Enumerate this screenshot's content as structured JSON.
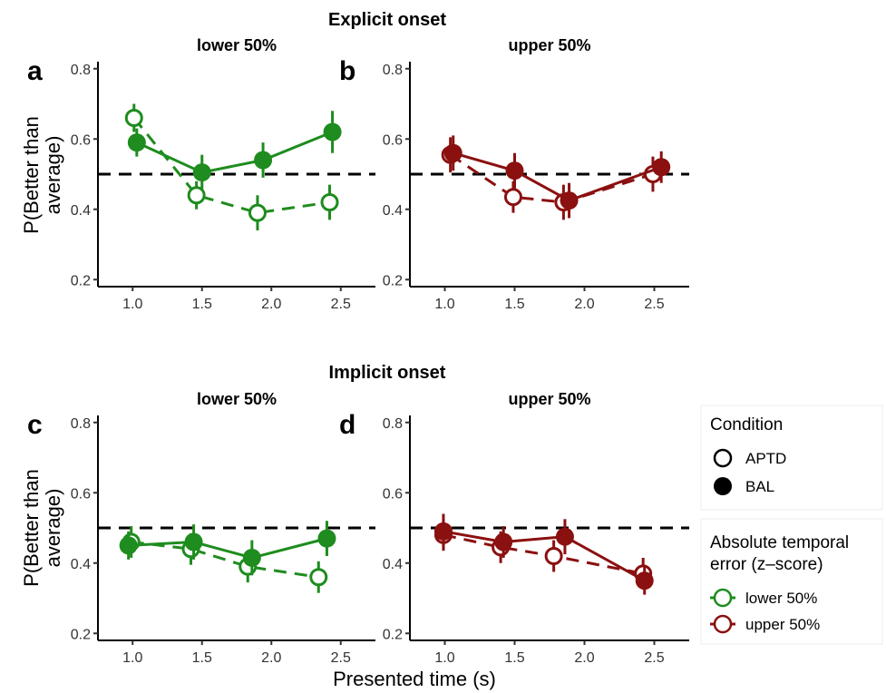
{
  "section_titles": [
    "Explicit onset",
    "Implicit onset"
  ],
  "y_axis_label": [
    "P(Better than",
    "average)"
  ],
  "x_axis_label": "Presented time (s)",
  "colors": {
    "lower": "#1e8c1e",
    "upper": "#8b1010",
    "reference": "#000000"
  },
  "legend": {
    "condition": {
      "title": "Condition",
      "items": [
        "APTD",
        "BAL"
      ]
    },
    "error": {
      "title": [
        "Absolute temporal",
        "error (z–score)"
      ],
      "items": [
        "lower 50%",
        "upper 50%"
      ]
    }
  },
  "chart_data": [
    {
      "panel": "a",
      "section": "Explicit onset",
      "facet": "lower 50%",
      "type": "line",
      "x_ticks": [
        "1.0",
        "1.5",
        "2.0",
        "2.5"
      ],
      "y_ticks": [
        "0.2",
        "0.4",
        "0.6",
        "0.8"
      ],
      "xlim": [
        0.75,
        2.75
      ],
      "ylim": [
        0.18,
        0.82
      ],
      "reference_line": 0.5,
      "color": "lower",
      "series": [
        {
          "name": "APTD",
          "x": [
            1.01,
            1.46,
            1.9,
            2.42
          ],
          "y": [
            0.66,
            0.44,
            0.39,
            0.42
          ],
          "err": [
            0.04,
            0.04,
            0.05,
            0.05
          ]
        },
        {
          "name": "BAL",
          "x": [
            1.03,
            1.5,
            1.94,
            2.44
          ],
          "y": [
            0.59,
            0.505,
            0.54,
            0.62
          ],
          "err": [
            0.04,
            0.05,
            0.05,
            0.06
          ]
        }
      ]
    },
    {
      "panel": "b",
      "section": "Explicit onset",
      "facet": "upper 50%",
      "type": "line",
      "x_ticks": [
        "1.0",
        "1.5",
        "2.0",
        "2.5"
      ],
      "y_ticks": [
        "0.2",
        "0.4",
        "0.6",
        "0.8"
      ],
      "xlim": [
        0.75,
        2.75
      ],
      "ylim": [
        0.18,
        0.82
      ],
      "reference_line": 0.5,
      "color": "upper",
      "series": [
        {
          "name": "APTD",
          "x": [
            1.04,
            1.49,
            1.85,
            2.49
          ],
          "y": [
            0.555,
            0.435,
            0.42,
            0.5
          ],
          "err": [
            0.05,
            0.045,
            0.05,
            0.05
          ]
        },
        {
          "name": "BAL",
          "x": [
            1.06,
            1.5,
            1.89,
            2.55
          ],
          "y": [
            0.56,
            0.51,
            0.425,
            0.52
          ],
          "err": [
            0.05,
            0.05,
            0.05,
            0.045
          ]
        }
      ]
    },
    {
      "panel": "c",
      "section": "Implicit onset",
      "facet": "lower 50%",
      "type": "line",
      "x_ticks": [
        "1.0",
        "1.5",
        "2.0",
        "2.5"
      ],
      "y_ticks": [
        "0.2",
        "0.4",
        "0.6",
        "0.8"
      ],
      "xlim": [
        0.75,
        2.75
      ],
      "ylim": [
        0.18,
        0.82
      ],
      "reference_line": 0.5,
      "color": "lower",
      "series": [
        {
          "name": "APTD",
          "x": [
            0.99,
            1.42,
            1.83,
            2.34
          ],
          "y": [
            0.46,
            0.44,
            0.39,
            0.36
          ],
          "err": [
            0.045,
            0.045,
            0.045,
            0.045
          ]
        },
        {
          "name": "BAL",
          "x": [
            0.97,
            1.44,
            1.86,
            2.4
          ],
          "y": [
            0.45,
            0.46,
            0.415,
            0.47
          ],
          "err": [
            0.04,
            0.05,
            0.05,
            0.05
          ]
        }
      ]
    },
    {
      "panel": "d",
      "section": "Implicit onset",
      "facet": "upper 50%",
      "type": "line",
      "x_ticks": [
        "1.0",
        "1.5",
        "2.0",
        "2.5"
      ],
      "y_ticks": [
        "0.2",
        "0.4",
        "0.6",
        "0.8"
      ],
      "xlim": [
        0.75,
        2.75
      ],
      "ylim": [
        0.18,
        0.82
      ],
      "reference_line": 0.5,
      "color": "upper",
      "series": [
        {
          "name": "APTD",
          "x": [
            0.99,
            1.4,
            1.78,
            2.42
          ],
          "y": [
            0.48,
            0.445,
            0.42,
            0.37
          ],
          "err": [
            0.045,
            0.045,
            0.045,
            0.045
          ]
        },
        {
          "name": "BAL",
          "x": [
            0.99,
            1.42,
            1.86,
            2.43
          ],
          "y": [
            0.49,
            0.46,
            0.475,
            0.35
          ],
          "err": [
            0.05,
            0.045,
            0.05,
            0.04
          ]
        }
      ]
    }
  ]
}
